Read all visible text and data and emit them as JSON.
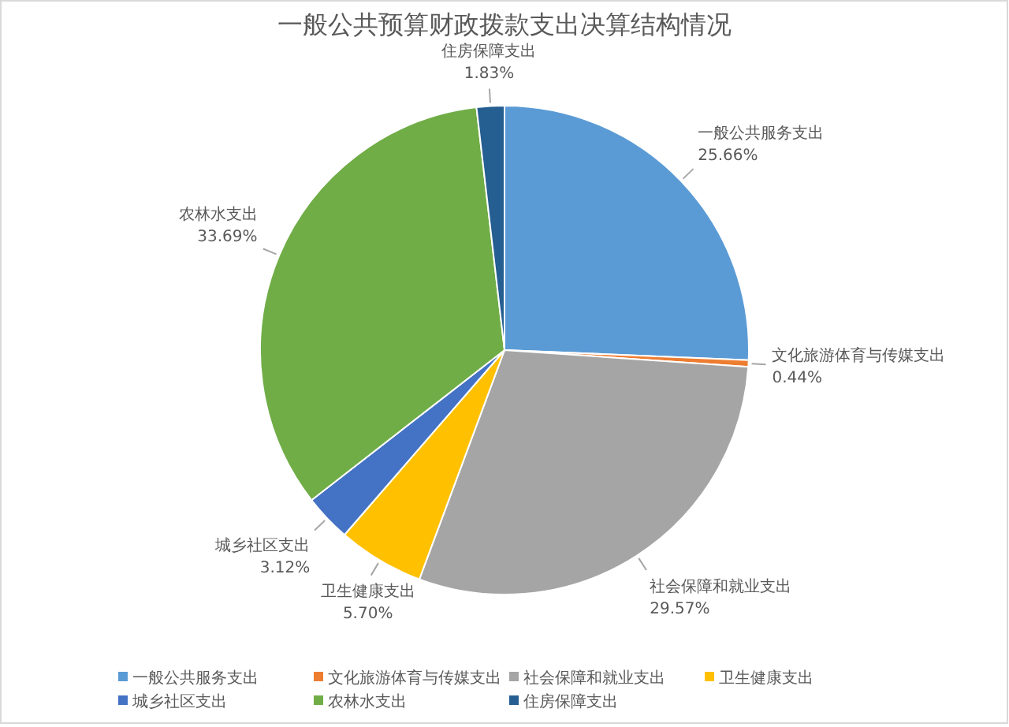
{
  "chart_data": {
    "type": "pie",
    "title": "一般公共预算财政拨款支出决算结构情况",
    "categories": [
      "一般公共服务支出",
      "文化旅游体育与传媒支出",
      "社会保障和就业支出",
      "卫生健康支出",
      "城乡社区支出",
      "农林水支出",
      "住房保障支出"
    ],
    "values": [
      25.66,
      0.44,
      29.57,
      5.7,
      3.12,
      33.69,
      1.83
    ],
    "value_labels": [
      "25.66%",
      "0.44%",
      "29.57%",
      "5.70%",
      "3.12%",
      "33.69%",
      "1.83%"
    ],
    "colors": [
      "#5b9bd5",
      "#ed7d31",
      "#a5a5a5",
      "#ffc000",
      "#4472c4",
      "#70ad47",
      "#255e91"
    ],
    "legend": "bottom"
  }
}
